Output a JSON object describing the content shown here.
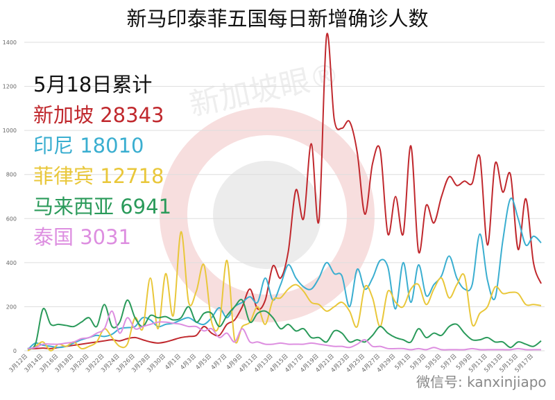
{
  "chart_data": {
    "type": "line",
    "title": "新马印泰菲五国每日新增确诊人数",
    "xlabel": "",
    "ylabel": "",
    "ylim": [
      0,
      1400
    ],
    "yticks": [
      0,
      200,
      400,
      600,
      800,
      1000,
      1200,
      1400
    ],
    "grid": true,
    "start_date": "3月12日",
    "x_tick_labels": [
      "3月12日",
      "3月14日",
      "3月16日",
      "3月18日",
      "3月20日",
      "3月22日",
      "3月24日",
      "3月26日",
      "3月28日",
      "3月30日",
      "4月1日",
      "4月3日",
      "4月5日",
      "4月7日",
      "4月9日",
      "4月11日",
      "4月13日",
      "4月15日",
      "4月17日",
      "4月19日",
      "4月21日",
      "4月23日",
      "4月25日",
      "4月27日",
      "4月29日",
      "5月1日",
      "5月3日",
      "5月5日",
      "5月7日",
      "5月9日",
      "5月11日",
      "5月13日",
      "5月15日",
      "5月17日"
    ],
    "legend_heading": "5月18日累计",
    "series": [
      {
        "name": "新加坡",
        "total": "28343",
        "color": "#c0282d",
        "values": [
          10,
          10,
          12,
          10,
          15,
          20,
          25,
          30,
          35,
          40,
          45,
          50,
          45,
          55,
          60,
          50,
          40,
          35,
          40,
          50,
          60,
          65,
          70,
          110,
          80,
          70,
          120,
          140,
          200,
          280,
          190,
          230,
          385,
          330,
          450,
          730,
          600,
          940,
          590,
          1430,
          1050,
          1010,
          1040,
          900,
          620,
          850,
          910,
          530,
          700,
          530,
          930,
          450,
          660,
          580,
          700,
          790,
          750,
          770,
          760,
          880,
          480,
          850,
          720,
          800,
          460,
          690,
          400,
          305
        ]
      },
      {
        "name": "印尼",
        "total": "18010",
        "color": "#3aaed0",
        "values": [
          5,
          35,
          25,
          20,
          15,
          20,
          35,
          50,
          60,
          70,
          65,
          75,
          100,
          105,
          110,
          150,
          140,
          110,
          120,
          125,
          140,
          150,
          130,
          120,
          150,
          195,
          150,
          200,
          220,
          245,
          220,
          330,
          230,
          300,
          390,
          330,
          290,
          280,
          330,
          400,
          350,
          340,
          200,
          370,
          280,
          330,
          410,
          380,
          190,
          400,
          220,
          390,
          250,
          300,
          340,
          430,
          330,
          280,
          300,
          530,
          320,
          240,
          500,
          690,
          600,
          480,
          520,
          490
        ]
      },
      {
        "name": "菲律宾",
        "total": "12718",
        "color": "#e9c73a",
        "values": [
          0,
          20,
          40,
          0,
          30,
          20,
          40,
          10,
          20,
          40,
          100,
          60,
          20,
          30,
          150,
          100,
          330,
          100,
          350,
          160,
          540,
          220,
          270,
          390,
          130,
          120,
          410,
          50,
          110,
          130,
          200,
          120,
          230,
          240,
          280,
          300,
          270,
          220,
          210,
          180,
          200,
          220,
          180,
          110,
          290,
          240,
          110,
          270,
          220,
          200,
          280,
          300,
          210,
          280,
          330,
          240,
          300,
          340,
          120,
          170,
          200,
          290,
          260,
          265,
          260,
          210,
          210,
          205
        ]
      },
      {
        "name": "马来西亚",
        "total": "6941",
        "color": "#2a9a5a",
        "values": [
          10,
          30,
          190,
          120,
          120,
          115,
          110,
          130,
          150,
          110,
          210,
          110,
          130,
          230,
          150,
          110,
          160,
          150,
          155,
          140,
          150,
          200,
          130,
          170,
          170,
          110,
          160,
          200,
          230,
          130,
          170,
          180,
          150,
          100,
          120,
          90,
          100,
          60,
          60,
          40,
          90,
          80,
          40,
          50,
          40,
          70,
          110,
          80,
          60,
          50,
          40,
          100,
          60,
          80,
          70,
          110,
          120,
          80,
          50,
          50,
          60,
          40,
          40,
          15,
          40,
          30,
          20,
          45
        ]
      },
      {
        "name": "泰国",
        "total": "3031",
        "color": "#dd8ee0",
        "values": [
          10,
          15,
          30,
          30,
          30,
          35,
          40,
          55,
          60,
          80,
          100,
          180,
          80,
          150,
          100,
          110,
          120,
          130,
          130,
          125,
          120,
          110,
          110,
          90,
          100,
          60,
          80,
          40,
          100,
          40,
          40,
          30,
          30,
          35,
          30,
          30,
          30,
          35,
          30,
          25,
          20,
          20,
          15,
          30,
          50,
          20,
          20,
          10,
          10,
          10,
          5,
          10,
          5,
          15,
          5,
          5,
          5,
          5,
          10,
          5,
          5,
          5,
          5,
          5,
          10,
          5,
          5,
          5
        ]
      }
    ]
  },
  "watermark": "新加坡眼®",
  "wechat_id": "微信号: kanxinjiapo"
}
